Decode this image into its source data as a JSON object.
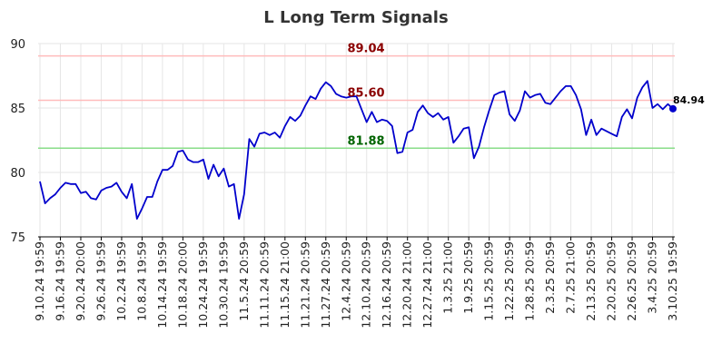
{
  "chart_data": {
    "type": "line",
    "title": "L Long Term Signals",
    "xlabel": "",
    "ylabel": "",
    "ylim": [
      75,
      90
    ],
    "yticks": [
      75,
      80,
      85,
      90
    ],
    "grid": true,
    "x_tick_labels": [
      "9.10.24 19:59",
      "9.16.24 19:59",
      "9.20.24 20:00",
      "9.26.24 19:59",
      "10.2.24 19:59",
      "10.8.24 19:59",
      "10.14.24 19:59",
      "10.18.24 20:00",
      "10.24.24 19:59",
      "10.30.24 19:59",
      "11.5.24 20:59",
      "11.11.24 20:59",
      "11.15.24 21:00",
      "11.21.24 20:59",
      "11.27.24 20:59",
      "12.4.24 20:59",
      "12.10.24 20:59",
      "12.16.24 20:59",
      "12.20.24 21:00",
      "12.27.24 21:00",
      "1.3.25 21:00",
      "1.9.25 20:59",
      "1.15.25 20:59",
      "1.22.25 20:59",
      "1.28.25 20:59",
      "2.3.25 20:59",
      "2.7.25 21:00",
      "2.13.25 20:59",
      "2.20.25 20:59",
      "2.26.25 20:59",
      "3.4.25 20:59",
      "3.10.25 19:59"
    ],
    "reference_lines": [
      {
        "value": 89.04,
        "label": "89.04",
        "line_color": "#ffbbbb",
        "label_color": "#8b0000"
      },
      {
        "value": 85.6,
        "label": "85.60",
        "line_color": "#ffbbbb",
        "label_color": "#8b0000"
      },
      {
        "value": 81.88,
        "label": "81.88",
        "line_color": "#88dd88",
        "label_color": "#006400"
      }
    ],
    "series": [
      {
        "color": "#0000cc",
        "values": [
          79.3,
          77.6,
          78.0,
          78.3,
          78.8,
          79.2,
          79.1,
          79.1,
          78.4,
          78.5,
          78.0,
          77.9,
          78.6,
          78.8,
          78.9,
          79.2,
          78.5,
          78.0,
          79.1,
          76.4,
          77.2,
          78.1,
          78.1,
          79.3,
          80.2,
          80.2,
          80.5,
          81.6,
          81.7,
          81.0,
          80.8,
          80.8,
          81.0,
          79.5,
          80.6,
          79.7,
          80.3,
          78.9,
          79.1,
          76.4,
          78.3,
          82.6,
          82.0,
          83.0,
          83.1,
          82.9,
          83.1,
          82.7,
          83.6,
          84.3,
          84.0,
          84.4,
          85.2,
          85.9,
          85.7,
          86.5,
          87.0,
          86.7,
          86.1,
          85.9,
          85.8,
          85.9,
          85.9,
          84.9,
          83.9,
          84.7,
          83.9,
          84.1,
          84.0,
          83.6,
          81.5,
          81.6,
          83.1,
          83.3,
          84.7,
          85.2,
          84.6,
          84.3,
          84.6,
          84.1,
          84.3,
          82.3,
          82.8,
          83.4,
          83.5,
          81.1,
          82.0,
          83.5,
          84.8,
          86.0,
          86.2,
          86.3,
          84.5,
          84.0,
          84.8,
          86.3,
          85.8,
          86.0,
          86.1,
          85.4,
          85.3,
          85.8,
          86.3,
          86.7,
          86.7,
          86.0,
          84.9,
          82.9,
          84.1,
          82.9,
          83.4,
          83.2,
          83.0,
          82.8,
          84.3,
          84.9,
          84.2,
          85.8,
          86.6,
          87.1,
          85.0,
          85.3,
          84.9,
          85.3,
          84.94
        ]
      }
    ],
    "last_point": {
      "value": 84.94,
      "label": "84.94"
    }
  }
}
